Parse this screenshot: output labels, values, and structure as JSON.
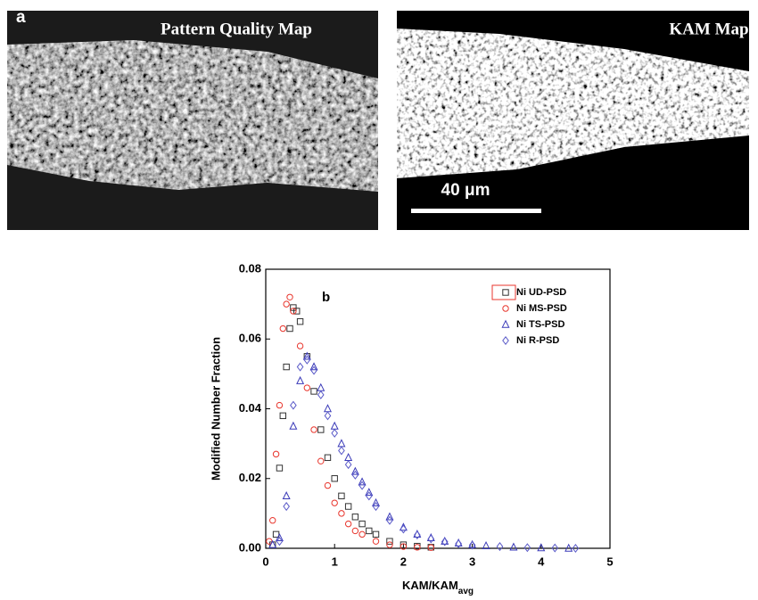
{
  "figure": {
    "panel_a_label": "a",
    "left_title": "Pattern Quality Map",
    "right_title": "KAM Map",
    "scale_bar": "40 μm"
  },
  "chart_data": {
    "type": "scatter",
    "annotation": "b",
    "xlabel": "KAM/KAM",
    "xlabel_sub": "avg",
    "ylabel": "Modified Number Fraction",
    "xlim": [
      0,
      5
    ],
    "ylim": [
      0,
      0.08
    ],
    "xticks": [
      0,
      1,
      2,
      3,
      4,
      5
    ],
    "yticks": [
      {
        "value": 0,
        "label": "0.00"
      },
      {
        "value": 0.02,
        "label": "0.02"
      },
      {
        "value": 0.04,
        "label": "0.04"
      },
      {
        "value": 0.06,
        "label": "0.06"
      },
      {
        "value": 0.08,
        "label": "0.08"
      }
    ],
    "series": [
      {
        "name": "Ni UD-PSD",
        "color": "#333333",
        "marker": "square",
        "x": [
          0.1,
          0.15,
          0.2,
          0.25,
          0.3,
          0.35,
          0.4,
          0.45,
          0.5,
          0.6,
          0.7,
          0.8,
          0.9,
          1.0,
          1.1,
          1.2,
          1.3,
          1.4,
          1.5,
          1.6,
          1.8,
          2.0,
          2.2,
          2.4
        ],
        "values": [
          0.001,
          0.004,
          0.023,
          0.038,
          0.052,
          0.063,
          0.069,
          0.068,
          0.065,
          0.055,
          0.045,
          0.034,
          0.026,
          0.02,
          0.015,
          0.012,
          0.009,
          0.007,
          0.005,
          0.004,
          0.002,
          0.001,
          0.0006,
          0.0003
        ]
      },
      {
        "name": "Ni MS-PSD",
        "color": "#e8352c",
        "marker": "circle",
        "x": [
          0.05,
          0.1,
          0.15,
          0.2,
          0.25,
          0.3,
          0.35,
          0.4,
          0.5,
          0.6,
          0.7,
          0.8,
          0.9,
          1.0,
          1.1,
          1.2,
          1.3,
          1.4,
          1.6,
          1.8,
          2.0,
          2.2,
          2.4
        ],
        "values": [
          0.002,
          0.008,
          0.027,
          0.041,
          0.063,
          0.07,
          0.072,
          0.068,
          0.058,
          0.046,
          0.034,
          0.025,
          0.018,
          0.013,
          0.01,
          0.007,
          0.005,
          0.004,
          0.002,
          0.001,
          0.0005,
          0.0003,
          0.0002
        ]
      },
      {
        "name": "Ni TS-PSD",
        "color": "#3a3ab8",
        "marker": "triangle",
        "x": [
          0.1,
          0.2,
          0.3,
          0.4,
          0.5,
          0.6,
          0.7,
          0.8,
          0.9,
          1.0,
          1.1,
          1.2,
          1.3,
          1.4,
          1.5,
          1.6,
          1.8,
          2.0,
          2.2,
          2.4,
          2.6,
          2.8,
          3.0,
          3.2,
          3.6,
          4.0,
          4.4
        ],
        "values": [
          0.001,
          0.003,
          0.015,
          0.035,
          0.048,
          0.055,
          0.052,
          0.046,
          0.04,
          0.035,
          0.03,
          0.026,
          0.022,
          0.019,
          0.016,
          0.013,
          0.009,
          0.006,
          0.004,
          0.003,
          0.002,
          0.0015,
          0.001,
          0.0007,
          0.0003,
          0.0001,
          0
        ]
      },
      {
        "name": "Ni R-PSD",
        "color": "#5a5ac8",
        "marker": "diamond",
        "x": [
          0.2,
          0.3,
          0.4,
          0.5,
          0.6,
          0.7,
          0.8,
          0.9,
          1.0,
          1.1,
          1.2,
          1.3,
          1.4,
          1.5,
          1.6,
          1.8,
          2.0,
          2.2,
          2.4,
          2.6,
          2.8,
          3.0,
          3.4,
          3.8,
          4.2,
          4.5
        ],
        "values": [
          0.002,
          0.012,
          0.041,
          0.052,
          0.054,
          0.051,
          0.044,
          0.038,
          0.033,
          0.028,
          0.024,
          0.021,
          0.018,
          0.015,
          0.012,
          0.008,
          0.0055,
          0.0038,
          0.0027,
          0.0019,
          0.0013,
          0.0009,
          0.0005,
          0.0002,
          0.0001,
          0
        ]
      }
    ]
  }
}
